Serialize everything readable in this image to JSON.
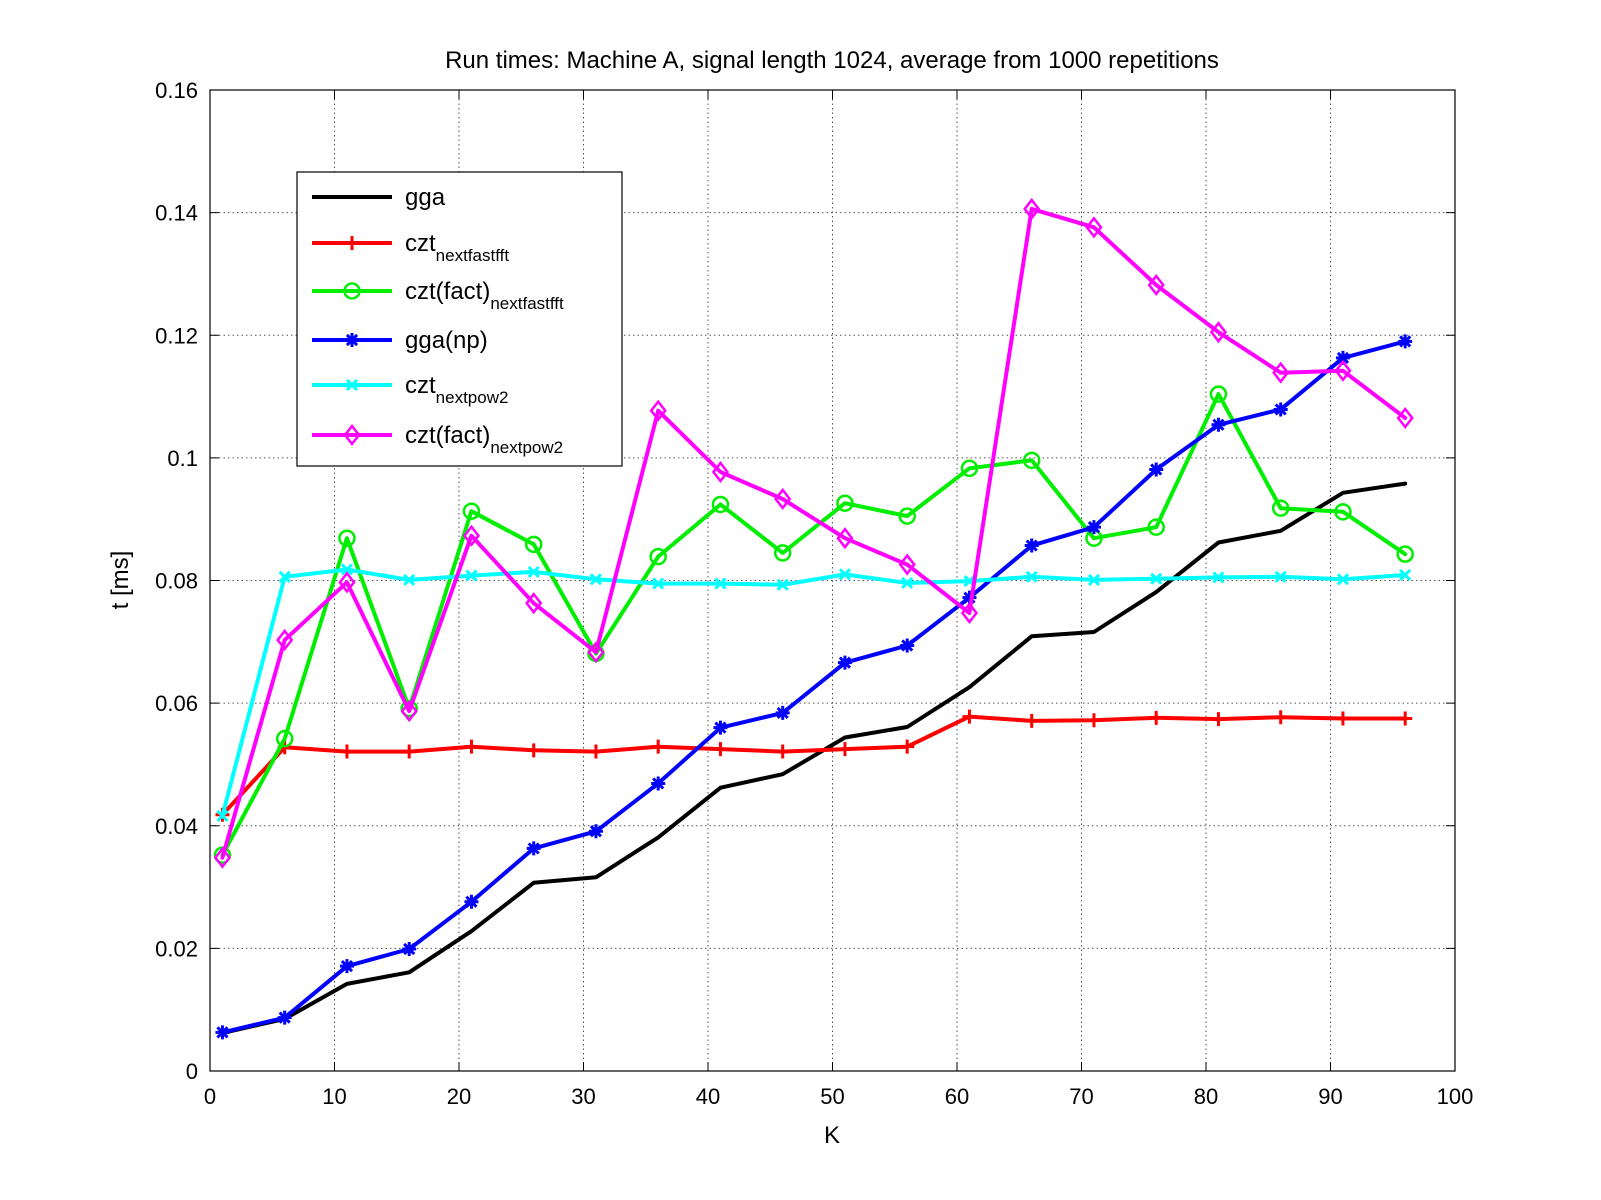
{
  "chart_data": {
    "type": "line",
    "title": "Run times: Machine A, signal length 1024, average from 1000 repetitions",
    "xlabel": "K",
    "ylabel": "t [ms]",
    "xlim": [
      0,
      100
    ],
    "ylim": [
      0,
      0.16
    ],
    "xticks": [
      0,
      10,
      20,
      30,
      40,
      50,
      60,
      70,
      80,
      90,
      100
    ],
    "yticks": [
      0,
      0.02,
      0.04,
      0.06,
      0.08,
      0.1,
      0.12,
      0.14,
      0.16
    ],
    "xtick_labels": [
      "0",
      "10",
      "20",
      "30",
      "40",
      "50",
      "60",
      "70",
      "80",
      "90",
      "100"
    ],
    "ytick_labels": [
      "0",
      "0.02",
      "0.04",
      "0.06",
      "0.08",
      "0.1",
      "0.12",
      "0.14",
      "0.16"
    ],
    "grid": true,
    "legend_position": "upper-left",
    "x": [
      1,
      6,
      11,
      16,
      21,
      26,
      31,
      36,
      41,
      46,
      51,
      56,
      61,
      66,
      71,
      76,
      81,
      86,
      91,
      96
    ],
    "series": [
      {
        "name": "gga",
        "name_main": "gga",
        "name_sub": "",
        "color": "#000000",
        "marker": "none",
        "values": [
          0.0062,
          0.0085,
          0.0142,
          0.0161,
          0.0228,
          0.0307,
          0.0316,
          0.0381,
          0.0462,
          0.0484,
          0.0544,
          0.0561,
          0.0626,
          0.0709,
          0.0716,
          0.0781,
          0.0862,
          0.0881,
          0.0943,
          0.0958
        ]
      },
      {
        "name": "czt nextfastfft",
        "name_main": "czt",
        "name_sub": "nextfastfft",
        "color": "#ff0000",
        "marker": "plus",
        "values": [
          0.0418,
          0.0528,
          0.0521,
          0.0521,
          0.0529,
          0.0523,
          0.0521,
          0.0529,
          0.0525,
          0.0521,
          0.0525,
          0.0529,
          0.0578,
          0.0571,
          0.0572,
          0.0576,
          0.0574,
          0.0577,
          0.0575,
          0.0575
        ]
      },
      {
        "name": "czt(fact) nextfastfft",
        "name_main": "czt(fact)",
        "name_sub": "nextfastfft",
        "color": "#00ee00",
        "marker": "circle",
        "values": [
          0.0352,
          0.0542,
          0.0869,
          0.0591,
          0.0913,
          0.0859,
          0.0681,
          0.0839,
          0.0924,
          0.0845,
          0.0926,
          0.0905,
          0.0983,
          0.0996,
          0.0869,
          0.0887,
          0.1104,
          0.0918,
          0.0912,
          0.0843
        ]
      },
      {
        "name": "gga(np)",
        "name_main": "gga(np)",
        "name_sub": "",
        "color": "#0000ff",
        "marker": "asterisk",
        "values": [
          0.0063,
          0.0087,
          0.0171,
          0.0199,
          0.0276,
          0.0363,
          0.0391,
          0.0469,
          0.056,
          0.0584,
          0.0666,
          0.0694,
          0.0772,
          0.0857,
          0.0887,
          0.0981,
          0.1054,
          0.1079,
          0.1163,
          0.119
        ]
      },
      {
        "name": "czt nextpow2",
        "name_main": "czt",
        "name_sub": "nextpow2",
        "color": "#00ffff",
        "marker": "x",
        "values": [
          0.0416,
          0.0806,
          0.0818,
          0.0801,
          0.0808,
          0.0814,
          0.0802,
          0.0795,
          0.0795,
          0.0793,
          0.081,
          0.0796,
          0.0799,
          0.0806,
          0.0801,
          0.0803,
          0.0805,
          0.0806,
          0.0802,
          0.0809
        ]
      },
      {
        "name": "czt(fact) nextpow2",
        "name_main": "czt(fact)",
        "name_sub": "nextpow2",
        "color": "#ff00ff",
        "marker": "diamond",
        "values": [
          0.0348,
          0.0703,
          0.0797,
          0.0587,
          0.0873,
          0.0763,
          0.0683,
          0.1077,
          0.0977,
          0.0933,
          0.0869,
          0.0826,
          0.0747,
          0.1406,
          0.1376,
          0.1282,
          0.1205,
          0.1139,
          0.1142,
          0.1065
        ]
      }
    ]
  }
}
